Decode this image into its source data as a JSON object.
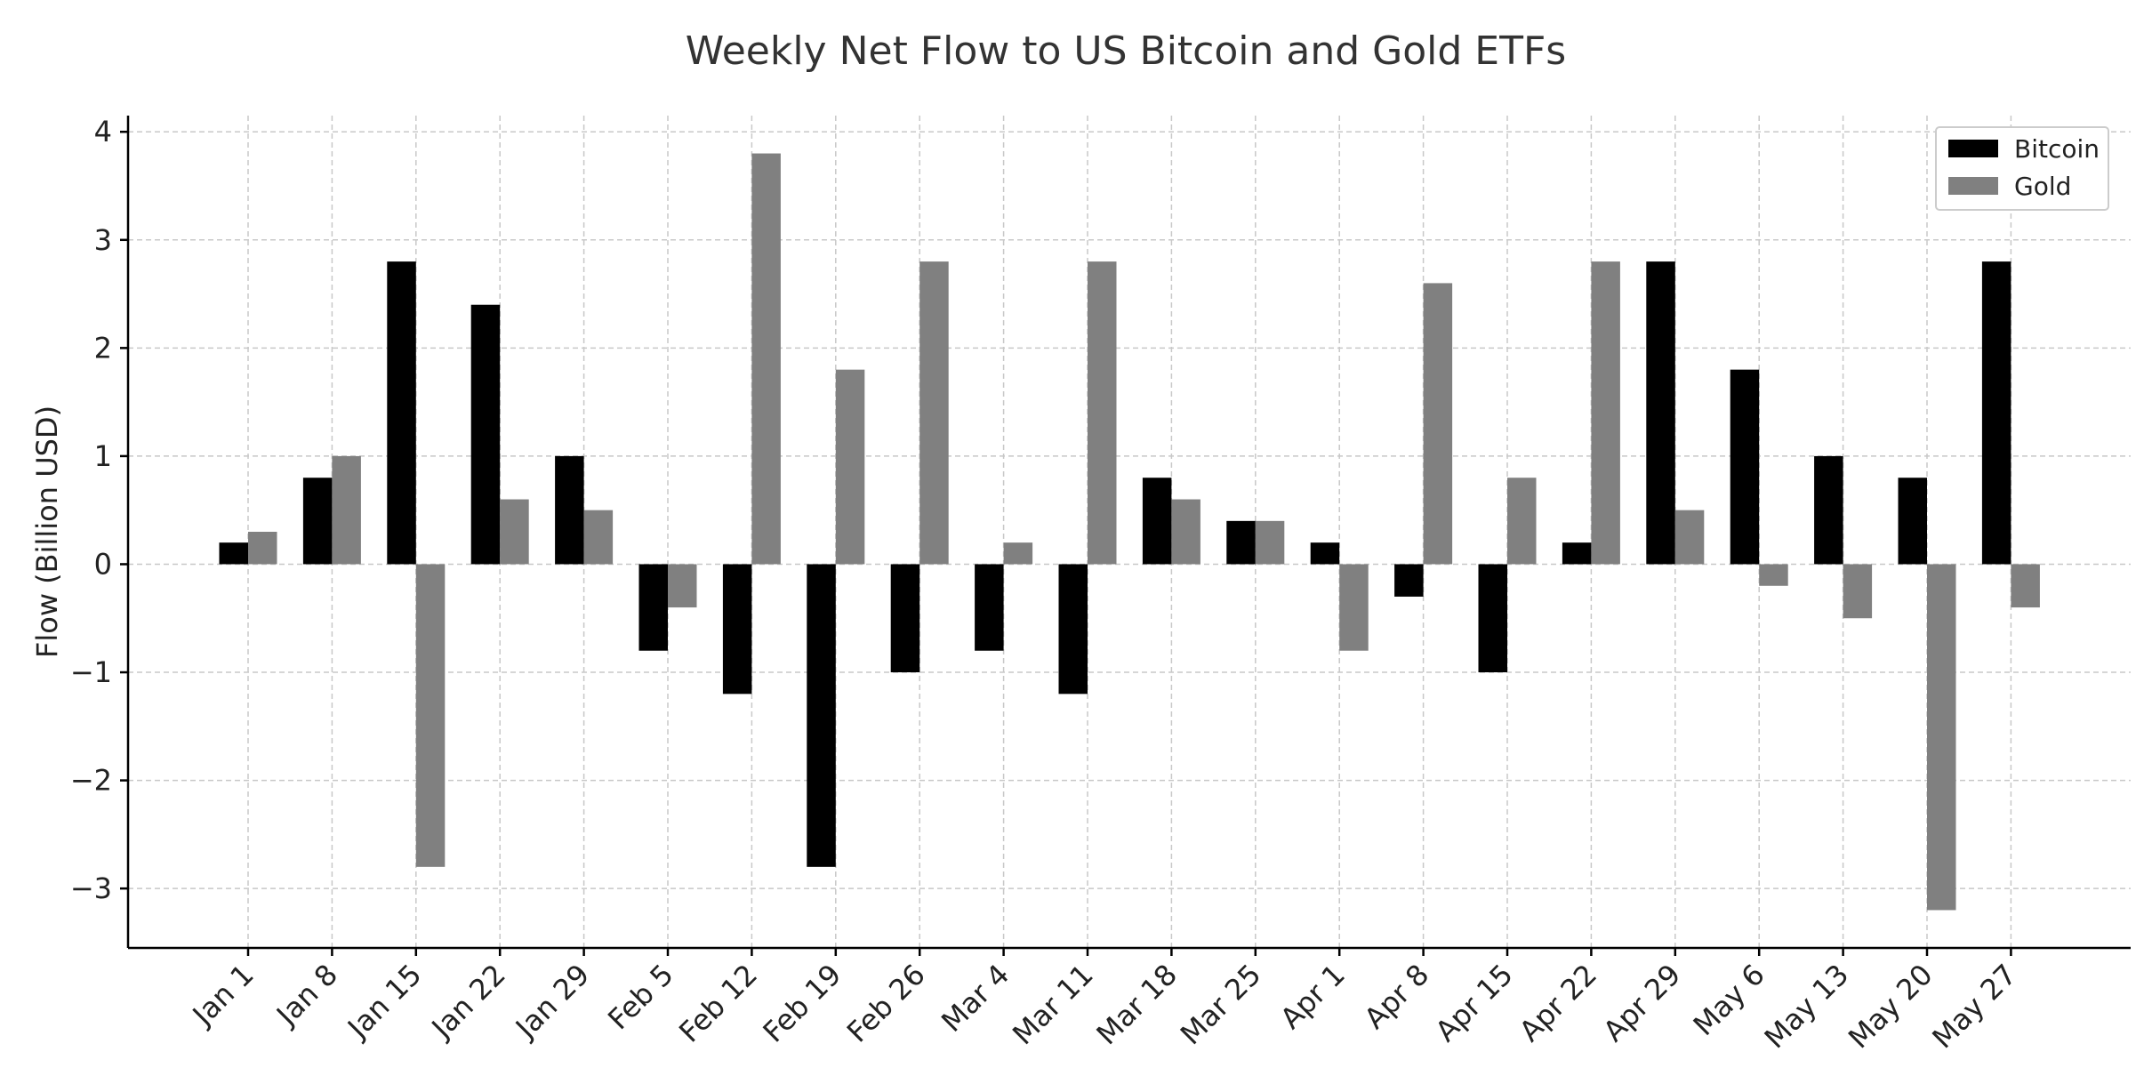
{
  "chart_data": {
    "type": "bar",
    "title": "Weekly Net Flow to US Bitcoin and Gold ETFs",
    "xlabel": "",
    "ylabel": "Flow (Billion USD)",
    "ylim": [
      -3.55,
      4.15
    ],
    "yticks": [
      -3,
      -2,
      -1,
      0,
      1,
      2,
      3,
      4
    ],
    "ytick_labels": [
      "−3",
      "−2",
      "−1",
      "0",
      "1",
      "2",
      "3",
      "4"
    ],
    "grid": true,
    "legend_position": "top-right",
    "categories": [
      "Jan 1",
      "Jan 8",
      "Jan 15",
      "Jan 22",
      "Jan 29",
      "Feb 5",
      "Feb 12",
      "Feb 19",
      "Feb 26",
      "Mar 4",
      "Mar 11",
      "Mar 18",
      "Mar 25",
      "Apr 1",
      "Apr 8",
      "Apr 15",
      "Apr 22",
      "Apr 29",
      "May 6",
      "May 13",
      "May 20",
      "May 27"
    ],
    "series": [
      {
        "name": "Bitcoin",
        "color": "#000000",
        "values": [
          0.2,
          0.8,
          2.8,
          2.4,
          1.0,
          -0.8,
          -1.2,
          -2.8,
          -1.0,
          -0.8,
          -1.2,
          0.8,
          0.4,
          0.2,
          -0.3,
          -1.0,
          0.2,
          2.8,
          1.8,
          1.0,
          0.8,
          2.8
        ]
      },
      {
        "name": "Gold",
        "color": "#808080",
        "values": [
          0.3,
          1.0,
          -2.8,
          0.6,
          0.5,
          -0.4,
          3.8,
          1.8,
          2.8,
          0.2,
          2.8,
          0.6,
          0.4,
          -0.8,
          2.6,
          0.8,
          2.8,
          0.5,
          -0.2,
          -0.5,
          -3.2,
          -0.4
        ]
      }
    ]
  }
}
